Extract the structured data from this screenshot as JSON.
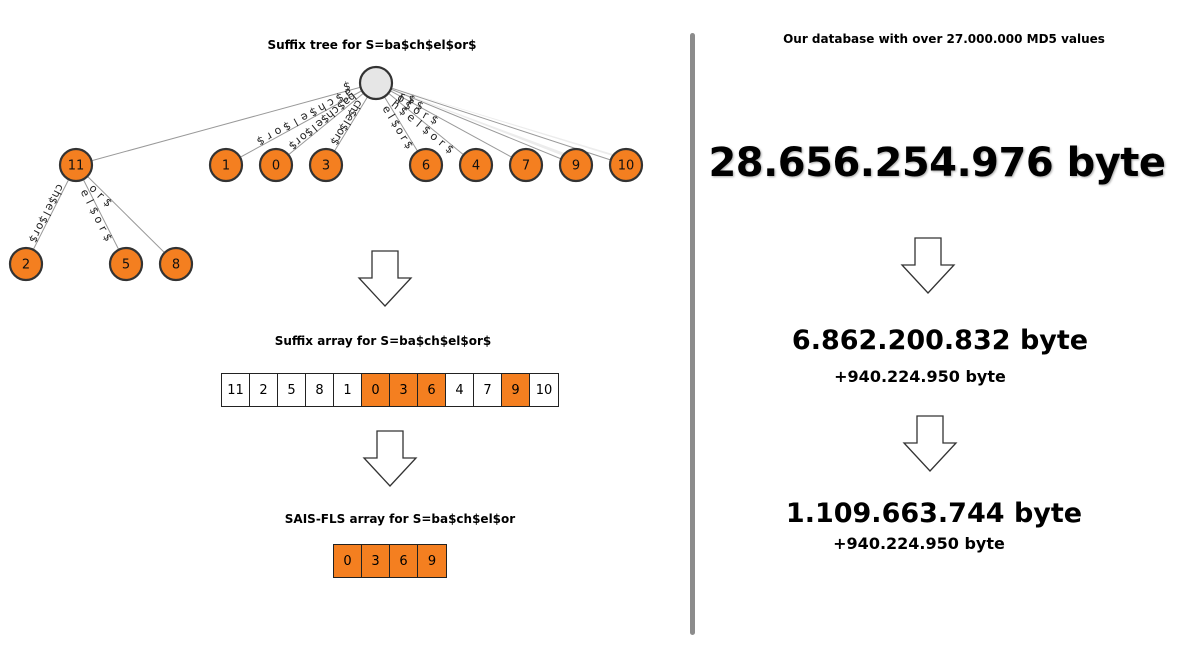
{
  "left": {
    "tree_title": "Suffix tree for S=ba$ch$el$or$",
    "tree": {
      "root": {
        "label": ""
      },
      "level1": [
        {
          "id": "11",
          "edge": "$"
        },
        {
          "id": "1",
          "edge": "a$ch$el$or$"
        },
        {
          "id": "0",
          "edge": "ba$ch$el$or$"
        },
        {
          "id": "3",
          "edge": "ch$el$or$"
        },
        {
          "id": "6",
          "edge": "el$or$"
        },
        {
          "id": "4",
          "edge": "h$el$or$"
        },
        {
          "id": "7",
          "edge": "l$or$"
        },
        {
          "id": "9",
          "edge": "or$"
        },
        {
          "id": "10",
          "edge": "r$"
        }
      ],
      "level2": [
        {
          "id": "2",
          "edge": "ch$el$or$"
        },
        {
          "id": "5",
          "edge": "el$or$"
        },
        {
          "id": "8",
          "edge": "or$"
        }
      ]
    },
    "suffix_array_title": "Suffix array for S=ba$ch$el$or$",
    "suffix_array": [
      {
        "v": "11",
        "hl": false
      },
      {
        "v": "2",
        "hl": false
      },
      {
        "v": "5",
        "hl": false
      },
      {
        "v": "8",
        "hl": false
      },
      {
        "v": "1",
        "hl": false
      },
      {
        "v": "0",
        "hl": true
      },
      {
        "v": "3",
        "hl": true
      },
      {
        "v": "6",
        "hl": true
      },
      {
        "v": "4",
        "hl": false
      },
      {
        "v": "7",
        "hl": false
      },
      {
        "v": "9",
        "hl": true
      },
      {
        "v": "10",
        "hl": false
      }
    ],
    "sais_title": "SAIS-FLS array for S=ba$ch$el$or",
    "sais_array": [
      "0",
      "3",
      "6",
      "9"
    ]
  },
  "right": {
    "title": "Our database with over 27.000.000 MD5 values",
    "size1": "28.656.254.976 byte",
    "size2": "6.862.200.832 byte",
    "size2_extra": "+940.224.950 byte",
    "size3": "1.109.663.744 byte",
    "size3_extra": "+940.224.950 byte"
  },
  "colors": {
    "node_fill": "#f47f20",
    "root_fill": "#e6e6e6",
    "divider": "#8c8c8c",
    "edge": "#999999"
  }
}
